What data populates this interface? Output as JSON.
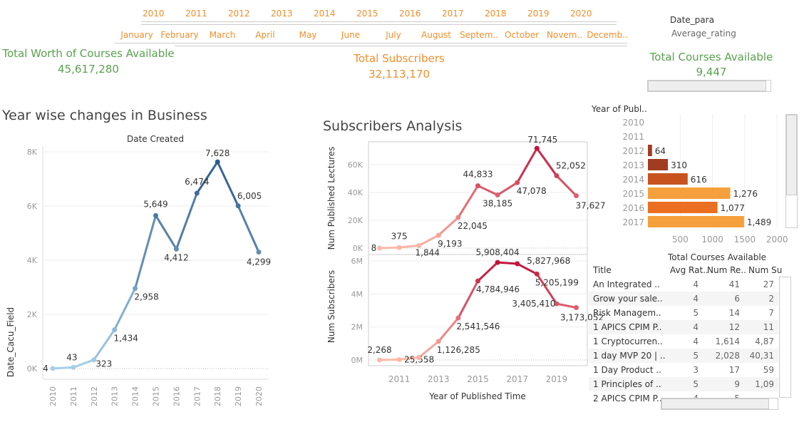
{
  "filters": {
    "years": [
      "2010",
      "2011",
      "2012",
      "2013",
      "2014",
      "2015",
      "2016",
      "2017",
      "2018",
      "2019",
      "2020"
    ],
    "months": [
      "January",
      "February",
      "March",
      "April",
      "May",
      "June",
      "July",
      "August",
      "Septem..",
      "October",
      "Novem..",
      "Decemb.."
    ],
    "params": [
      "Date_para",
      "Average_rating"
    ]
  },
  "kpis": {
    "worth": {
      "label": "Total Worth of Courses Available",
      "value": "45,617,280"
    },
    "subscribers": {
      "label": "Total Subscribers",
      "value": "32,113,170"
    },
    "courses": {
      "label": "Total Courses Available",
      "value": "9,447"
    }
  },
  "colors": {
    "green": "#59a14f",
    "orange": "#f28e2b"
  },
  "chart_data": [
    {
      "type": "line",
      "title": "Year wise changes in Business",
      "xlabel": "Date Created",
      "ylabel": "Date_Cacu_Field",
      "x": [
        2010,
        2011,
        2012,
        2013,
        2014,
        2015,
        2016,
        2017,
        2018,
        2019,
        2020
      ],
      "values": [
        4,
        43,
        323,
        1434,
        2958,
        5649,
        4412,
        6474,
        7628,
        6005,
        4299
      ],
      "labels": [
        "4",
        "43",
        "323",
        "1,434",
        "2,958",
        "5,649",
        "4,412",
        "6,474",
        "7,628",
        "6,005",
        "4,299"
      ],
      "yticks": [
        "0K",
        "2K",
        "4K",
        "6K",
        "8K"
      ],
      "ylim": [
        0,
        8000
      ],
      "grid": true,
      "color_scale": [
        "#a6cfea",
        "#2d5c8a"
      ]
    },
    {
      "type": "line",
      "title": "Subscribers Analysis",
      "xlabel": "Year of Published Time",
      "xticks": [
        "2011",
        "2013",
        "2015",
        "2017",
        "2019"
      ],
      "x": [
        2010,
        2011,
        2012,
        2013,
        2014,
        2015,
        2016,
        2017,
        2018,
        2019,
        2020
      ],
      "panels": [
        {
          "ylabel": "Num Published Lectures",
          "yticks": [
            "0K",
            "20K",
            "40K",
            "60K"
          ],
          "ylim": [
            0,
            72000
          ],
          "values": [
            8,
            375,
            1844,
            9193,
            22045,
            44833,
            38185,
            47078,
            71745,
            52052,
            37627
          ],
          "labels": [
            "8",
            "375",
            "1,844",
            "9,193",
            "22,045",
            "44,833",
            "38,185",
            "47,078",
            "71,745",
            "52,052",
            "37,627"
          ]
        },
        {
          "ylabel": "Num Subscribers",
          "yticks": [
            "0M",
            "2M",
            "4M",
            "6M"
          ],
          "ylim": [
            0,
            6000000
          ],
          "values": [
            2268,
            25558,
            150000,
            1126285,
            2541546,
            4784946,
            5908404,
            5827968,
            5205199,
            3405410,
            3173052
          ],
          "labels": [
            "2,268",
            "25,558",
            "",
            "1,126,285",
            "2,541,546",
            "4,784,946",
            "5,908,404",
            "5,827,968",
            "5,205,199",
            "3,405,410",
            "3,173,052"
          ]
        }
      ],
      "grid": true,
      "color_scale": [
        "#fcb9a8",
        "#c0143c"
      ]
    },
    {
      "type": "bar",
      "orientation": "horizontal",
      "ylabel": "Year of Publ..",
      "xlabel": "Total Courses Available",
      "categories": [
        "2010",
        "2011",
        "2012",
        "2013",
        "2014",
        "2015",
        "2016",
        "2017"
      ],
      "values": [
        null,
        null,
        64,
        310,
        616,
        1276,
        1077,
        1489
      ],
      "labels": [
        "",
        "",
        "64",
        "310",
        "616",
        "1,276",
        "1,077",
        "1,489"
      ],
      "colors": [
        "",
        "",
        "#a03c22",
        "#a03c22",
        "#c8531f",
        "#f5a03c",
        "#ea6f22",
        "#f5a03c"
      ],
      "xticks": [
        "500",
        "1000",
        "1500",
        "2000"
      ],
      "xlim": [
        0,
        2000
      ],
      "grid": true
    }
  ],
  "table": {
    "headers": [
      "Title",
      "Avg Rat..",
      "Num Re..",
      "Num Su"
    ],
    "rows": [
      [
        "An Integrated ..",
        "4",
        "41",
        "27"
      ],
      [
        "Grow your sale..",
        "4",
        "6",
        "2"
      ],
      [
        "Risk Managem..",
        "5",
        "14",
        "7"
      ],
      [
        "1 APICS CPIM P..",
        "4",
        "12",
        "11"
      ],
      [
        "1 Cryptocurren..",
        "4",
        "1,614",
        "4,87"
      ],
      [
        "1 day MVP 20 | ..",
        "5",
        "2,028",
        "40,31"
      ],
      [
        "1 Day Product ..",
        "3",
        "17",
        "59"
      ],
      [
        "1 Principles of ..",
        "5",
        "9",
        "1,09"
      ],
      [
        "2 APICS CPIM P..",
        "4",
        "5",
        ""
      ]
    ]
  }
}
